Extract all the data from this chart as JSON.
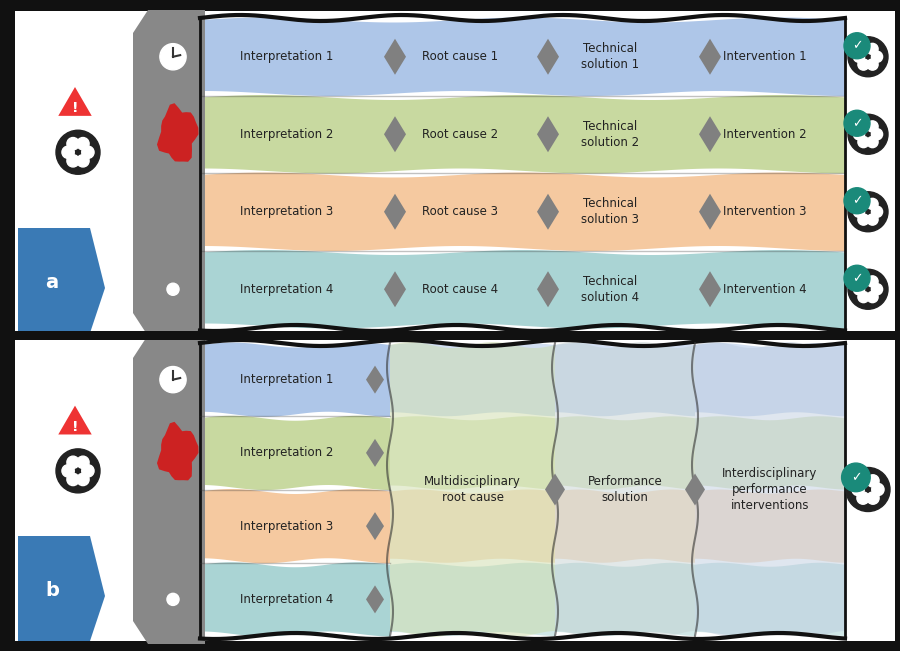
{
  "fig_width": 9.0,
  "fig_height": 6.51,
  "bg_color": "#ffffff",
  "row_colors": [
    "#aec6e8",
    "#c8d9a0",
    "#f5c9a0",
    "#aad4d4"
  ],
  "row_labels": [
    "Interpretation 1",
    "Interpretation 2",
    "Interpretation 3",
    "Interpretation 4"
  ],
  "root_labels": [
    "Root cause 1",
    "Root cause 2",
    "Root cause 3",
    "Root cause 4"
  ],
  "tech_labels": [
    "Technical\nsolution 1",
    "Technical\nsolution 2",
    "Technical\nsolution 3",
    "Technical\nsolution 4"
  ],
  "int_labels": [
    "Intervention 1",
    "Intervention 2",
    "Intervention 3",
    "Intervention 4"
  ],
  "merged_labels": [
    "Multidisciplinary\nroot cause",
    "Performance\nsolution",
    "Interdisciplinary\nperformance\ninterventions"
  ],
  "diamond_color": "#808080",
  "gray_color": "#888888",
  "red_color": "#cc2222",
  "blue_color": "#3a7ab5",
  "teal_color": "#1a8a7a",
  "black_color": "#111111",
  "label_a": "a",
  "label_b": "b"
}
